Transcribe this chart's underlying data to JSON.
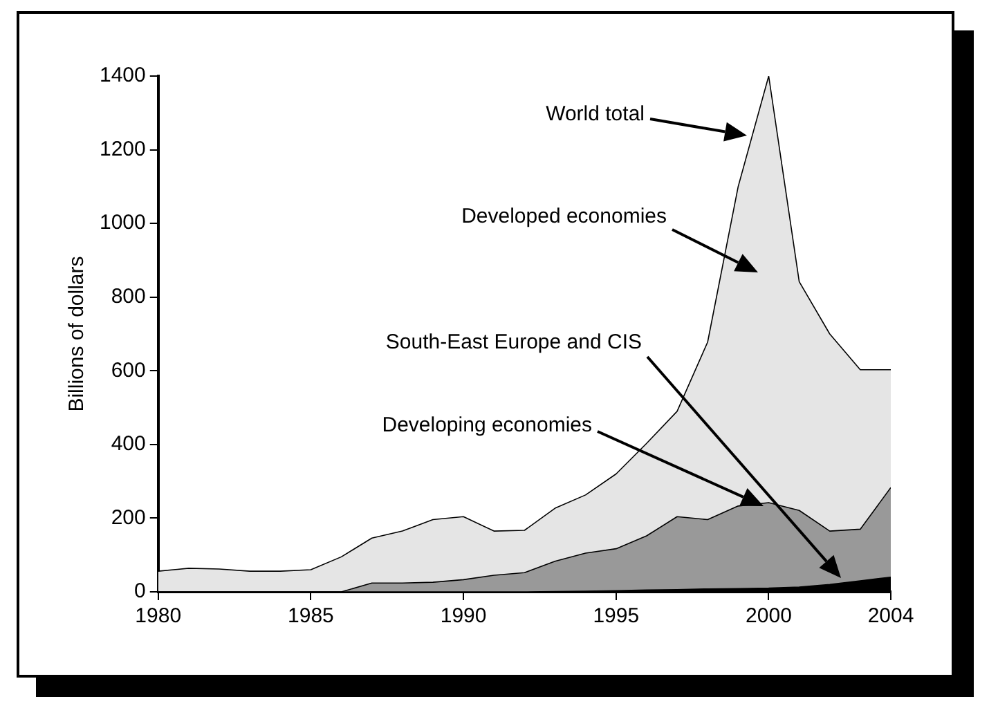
{
  "chart_data": {
    "type": "area",
    "stacked": true,
    "ylabel": "Billions of dollars",
    "x": [
      1980,
      1981,
      1982,
      1983,
      1984,
      1985,
      1986,
      1987,
      1988,
      1989,
      1990,
      1991,
      1992,
      1993,
      1994,
      1995,
      1996,
      1997,
      1998,
      1999,
      2000,
      2001,
      2002,
      2003,
      2004
    ],
    "series": [
      {
        "color": "#000000",
        "values": [
          0,
          0,
          0,
          0,
          0,
          0,
          0,
          0,
          0,
          0,
          0,
          0,
          0,
          1,
          2,
          3,
          5,
          6,
          8,
          9,
          10,
          13,
          20,
          30,
          40
        ]
      },
      {
        "color": "#999999",
        "values": [
          0,
          0,
          0,
          0,
          0,
          0,
          0,
          24,
          24,
          26,
          33,
          45,
          52,
          82,
          103,
          114,
          147,
          198,
          188,
          224,
          232,
          208,
          145,
          140,
          243
        ]
      },
      {
        "color": "#e5e5e5",
        "values": [
          56,
          64,
          62,
          56,
          56,
          60,
          95,
          122,
          141,
          170,
          171,
          120,
          115,
          144,
          158,
          203,
          251,
          286,
          482,
          867,
          1158,
          621,
          535,
          433,
          320
        ]
      }
    ],
    "xlim": [
      1980,
      2004
    ],
    "xticks": [
      1980,
      1985,
      1990,
      1995,
      2000,
      2004
    ],
    "ylim": [
      0,
      1400
    ],
    "yticks": [
      0,
      200,
      400,
      600,
      800,
      1000,
      1200,
      1400
    ],
    "grid": false,
    "legend": false,
    "annotations": [
      "World total",
      "Developed economies",
      "South-East Europe and CIS",
      "Developing economies"
    ]
  }
}
